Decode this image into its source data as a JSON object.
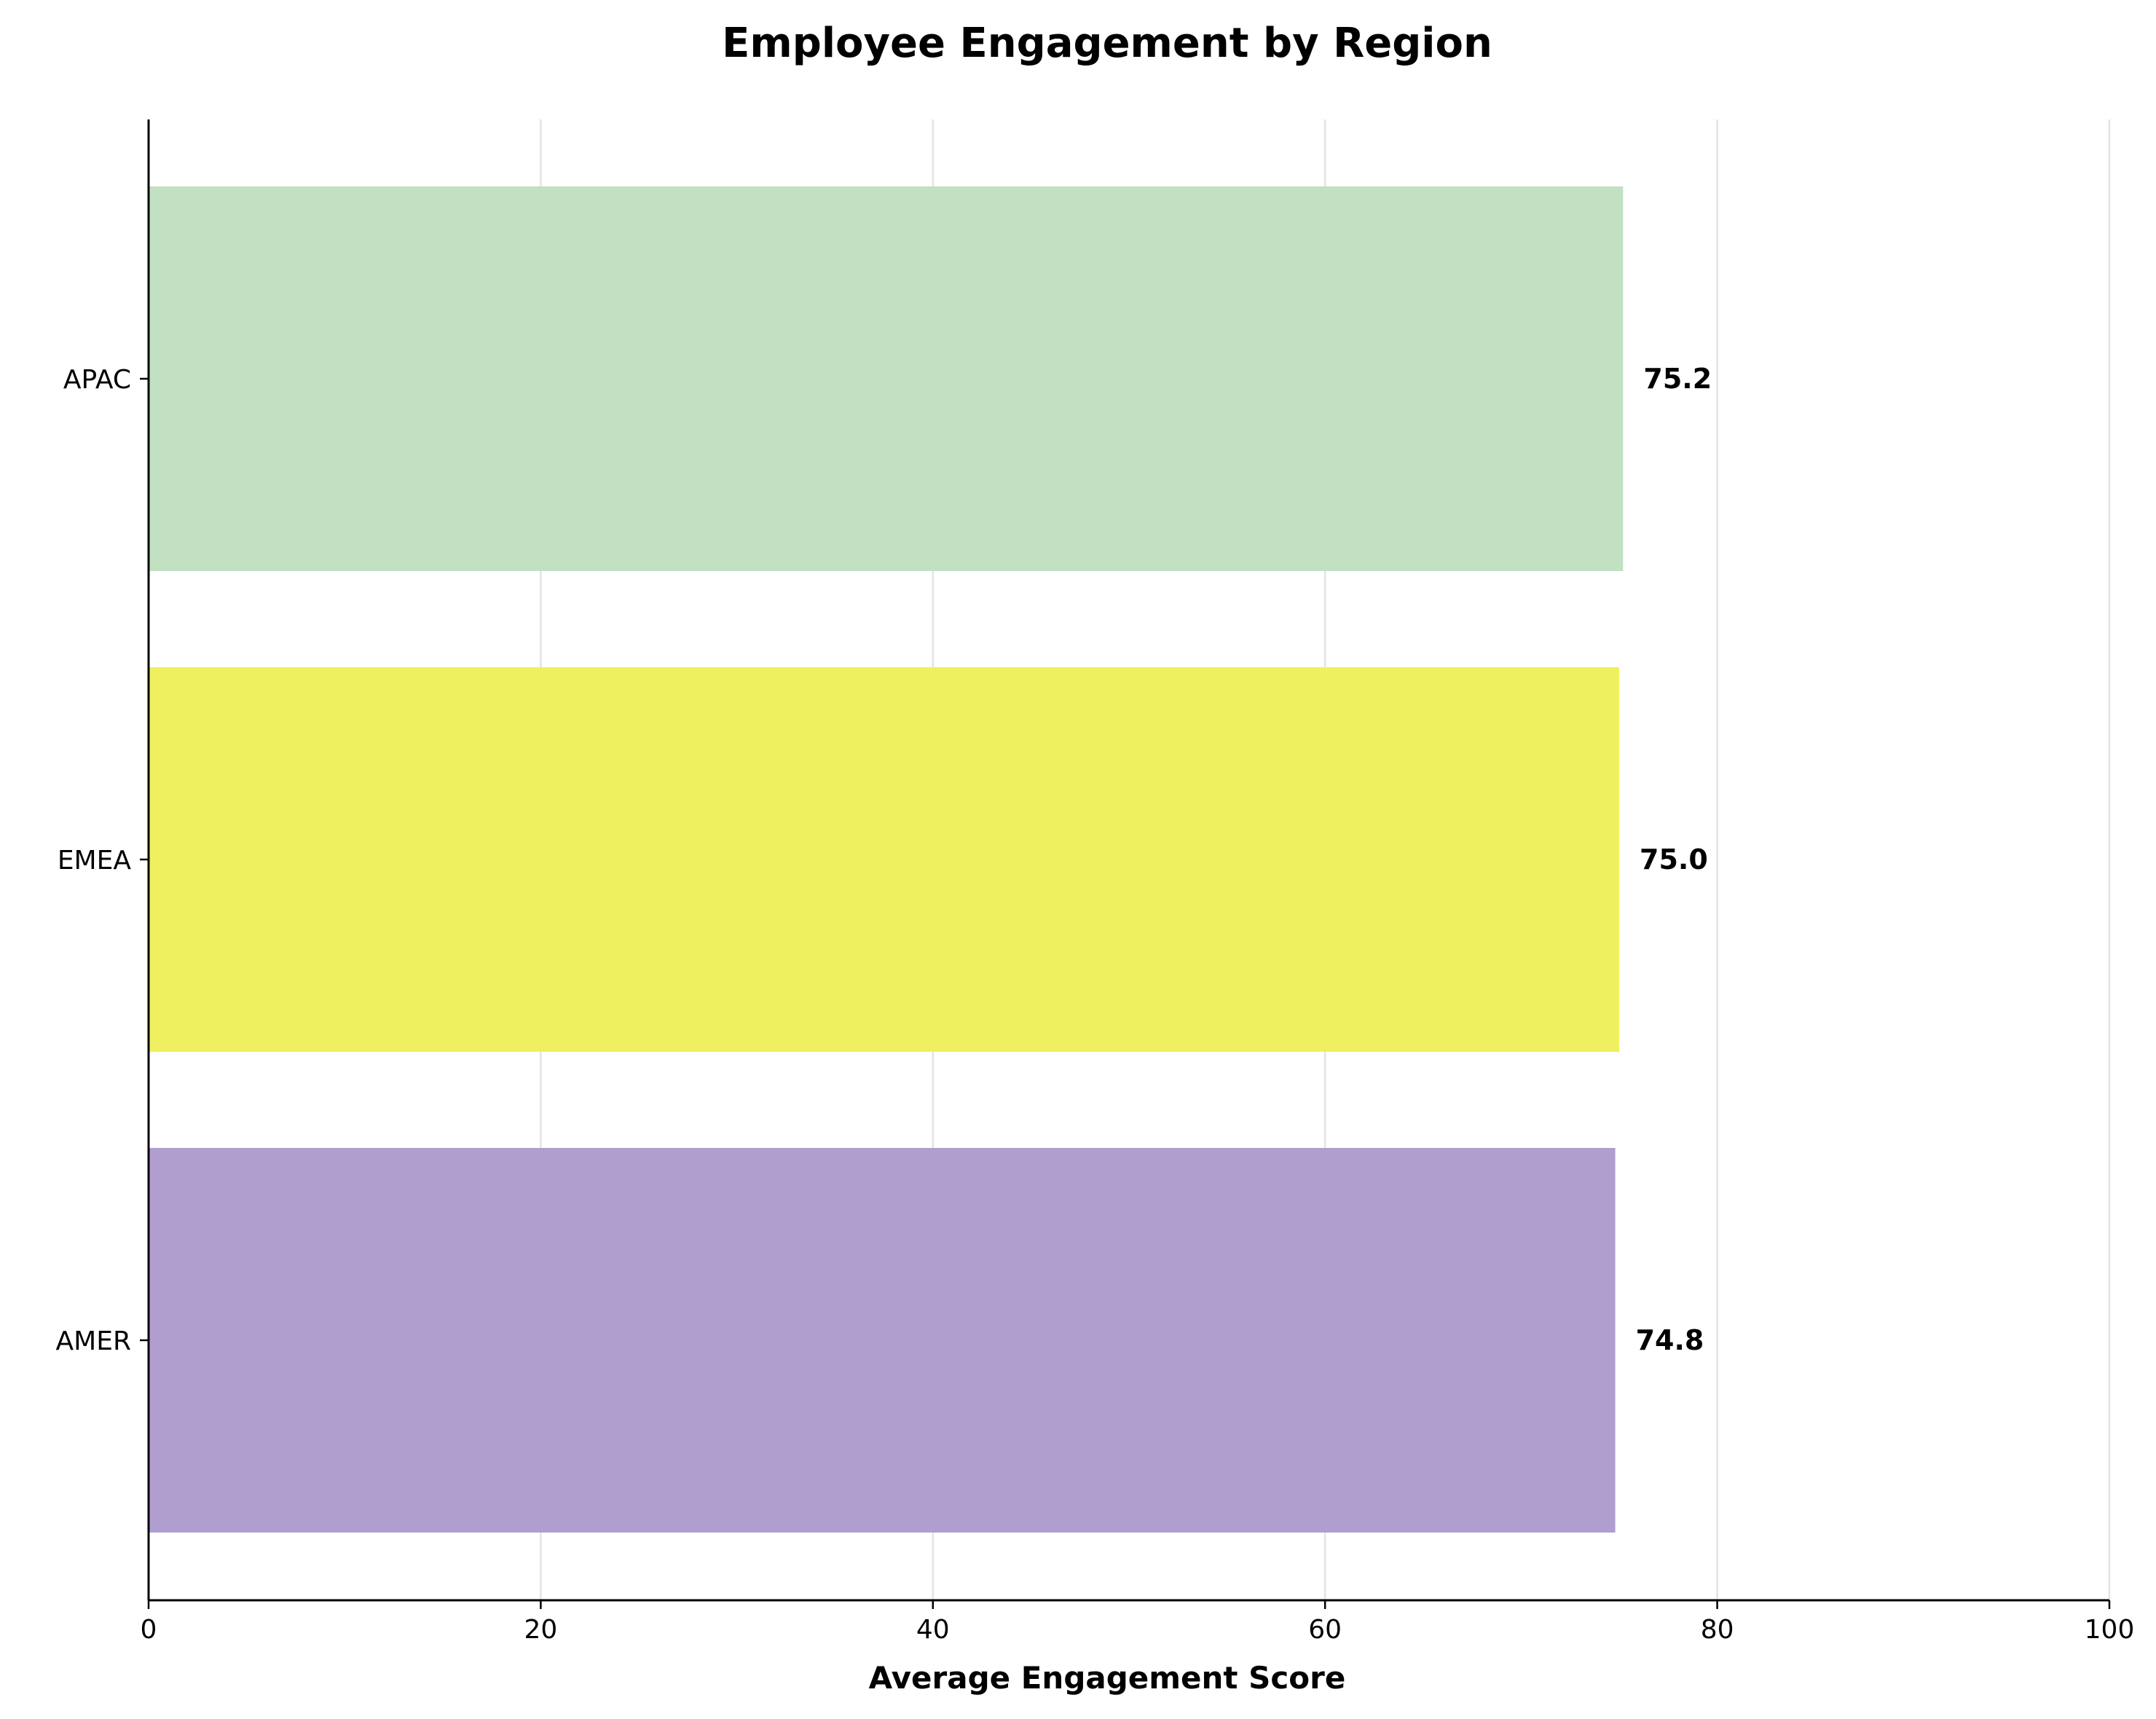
{
  "chart_data": {
    "type": "bar",
    "orientation": "horizontal",
    "title": "Employee Engagement by Region",
    "xlabel": "Average Engagement Score",
    "ylabel": "",
    "categories": [
      "AMER",
      "EMEA",
      "APAC"
    ],
    "values": [
      74.8,
      75.0,
      75.2
    ],
    "value_labels": [
      "74.8",
      "75.0",
      "75.2"
    ],
    "colors": [
      "#b09ecf",
      "#eff060",
      "#c2e0c2"
    ],
    "xlim": [
      0,
      100
    ],
    "xticks": [
      "0",
      "20",
      "40",
      "60",
      "80",
      "100"
    ],
    "grid": "vertical",
    "legend": "none"
  }
}
